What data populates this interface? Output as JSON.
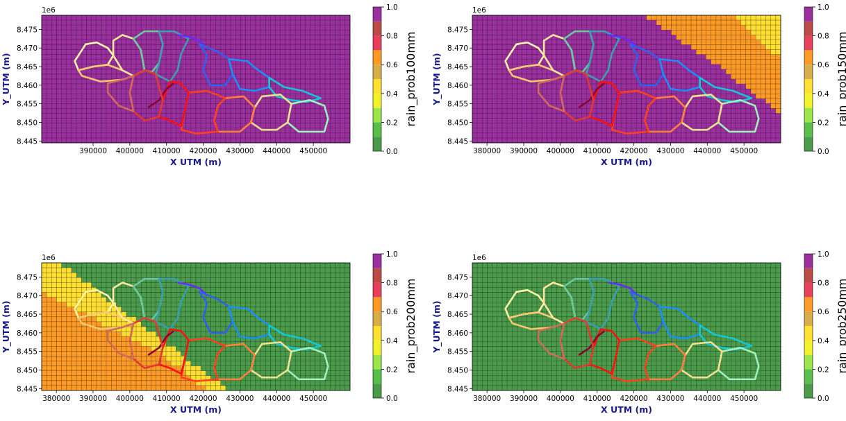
{
  "chart_data": [
    {
      "type": "heatmap",
      "title": "",
      "xlabel": "X UTM (m)",
      "ylabel": "Y_UTM (m)",
      "y_offset_label": "1e6",
      "xlim": [
        376000,
        460000
      ],
      "ylim": [
        8.4445,
        8.4788
      ],
      "xticks": [
        "390000",
        "400000",
        "410000",
        "420000",
        "430000",
        "440000",
        "450000"
      ],
      "xtick_values": [
        390000,
        400000,
        410000,
        420000,
        430000,
        440000,
        450000
      ],
      "yticks": [
        "8.445",
        "8.450",
        "8.455",
        "8.460",
        "8.465",
        "8.470",
        "8.475"
      ],
      "ytick_values": [
        8.445,
        8.45,
        8.455,
        8.46,
        8.465,
        8.47,
        8.475
      ],
      "colorbar_label": "rain_prob100mm",
      "grid_fill": {
        "default_probability": 1.0,
        "zones": []
      }
    },
    {
      "type": "heatmap",
      "title": "",
      "xlabel": "X UTM (m)",
      "ylabel": "Y_UTM (m)",
      "y_offset_label": "1e6",
      "xlim": [
        376000,
        460000
      ],
      "ylim": [
        8.4445,
        8.4788
      ],
      "xticks": [
        "380000",
        "390000",
        "400000",
        "410000",
        "420000",
        "430000",
        "440000",
        "450000"
      ],
      "xtick_values": [
        380000,
        390000,
        400000,
        410000,
        420000,
        430000,
        440000,
        450000
      ],
      "yticks": [
        "8.445",
        "8.450",
        "8.455",
        "8.460",
        "8.465",
        "8.470",
        "8.475"
      ],
      "ytick_values": [
        8.445,
        8.45,
        8.455,
        8.46,
        8.465,
        8.47,
        8.475
      ],
      "colorbar_label": "rain_prob150mm",
      "grid_fill": {
        "default_probability": 1.0,
        "zones": [
          {
            "probability": 0.65,
            "region": "upper-right diagonal band",
            "boundary": [
              [
                423000,
                8.4788
              ],
              [
                460000,
                8.4788
              ],
              [
                460000,
                8.4525
              ],
              [
                443000,
                8.465
              ]
            ]
          },
          {
            "probability": 0.45,
            "region": "upper-right corner",
            "boundary": [
              [
                447000,
                8.4788
              ],
              [
                460000,
                8.4788
              ],
              [
                460000,
                8.467
              ]
            ]
          }
        ]
      }
    },
    {
      "type": "heatmap",
      "title": "",
      "xlabel": "X UTM (m)",
      "ylabel": "Y_UTM (m)",
      "y_offset_label": "1e6",
      "xlim": [
        376000,
        460000
      ],
      "ylim": [
        8.4445,
        8.4788
      ],
      "xticks": [
        "380000",
        "390000",
        "400000",
        "410000",
        "420000",
        "430000",
        "440000",
        "450000"
      ],
      "xtick_values": [
        380000,
        390000,
        400000,
        410000,
        420000,
        430000,
        440000,
        450000
      ],
      "yticks": [
        "8.445",
        "8.450",
        "8.455",
        "8.460",
        "8.465",
        "8.470",
        "8.475"
      ],
      "ytick_values": [
        8.445,
        8.45,
        8.455,
        8.46,
        8.465,
        8.47,
        8.475
      ],
      "colorbar_label": "rain_prob200mm",
      "grid_fill": {
        "default_probability": 0.0,
        "zones": [
          {
            "probability": 0.45,
            "region": "lower-left diagonal band",
            "boundary": [
              [
                376000,
                8.4788
              ],
              [
                381000,
                8.4788
              ],
              [
                427000,
                8.4445
              ],
              [
                376000,
                8.4445
              ]
            ]
          },
          {
            "probability": 0.65,
            "region": "lower-left corner",
            "boundary": [
              [
                376000,
                8.471
              ],
              [
                408000,
                8.4545
              ],
              [
                421000,
                8.4445
              ],
              [
                376000,
                8.4445
              ]
            ]
          }
        ]
      }
    },
    {
      "type": "heatmap",
      "title": "",
      "xlabel": "X UTM (m)",
      "ylabel": "Y_UTM (m)",
      "y_offset_label": "1e6",
      "xlim": [
        376000,
        460000
      ],
      "ylim": [
        8.4445,
        8.4788
      ],
      "xticks": [
        "380000",
        "390000",
        "400000",
        "410000",
        "420000",
        "430000",
        "440000",
        "450000"
      ],
      "xtick_values": [
        380000,
        390000,
        400000,
        410000,
        420000,
        430000,
        440000,
        450000
      ],
      "yticks": [
        "8.445",
        "8.450",
        "8.455",
        "8.460",
        "8.465",
        "8.470",
        "8.475"
      ],
      "ytick_values": [
        8.445,
        8.45,
        8.455,
        8.46,
        8.465,
        8.47,
        8.475
      ],
      "colorbar_label": "rain_prob250mm",
      "grid_fill": {
        "default_probability": 0.0,
        "zones": []
      }
    }
  ],
  "colorbar": {
    "ticks": [
      "0.0",
      "0.2",
      "0.4",
      "0.6",
      "0.8",
      "1.0"
    ],
    "tick_values": [
      0.0,
      0.2,
      0.4,
      0.6,
      0.8,
      1.0
    ],
    "bins": [
      {
        "from": 0.0,
        "to": 0.1,
        "color": "#4a9c4a"
      },
      {
        "from": 0.1,
        "to": 0.2,
        "color": "#58bf48"
      },
      {
        "from": 0.2,
        "to": 0.3,
        "color": "#9be64a"
      },
      {
        "from": 0.3,
        "to": 0.4,
        "color": "#f2f22a"
      },
      {
        "from": 0.4,
        "to": 0.5,
        "color": "#ffdf30"
      },
      {
        "from": 0.5,
        "to": 0.6,
        "color": "#d8ae4a"
      },
      {
        "from": 0.6,
        "to": 0.7,
        "color": "#ff9a24"
      },
      {
        "from": 0.7,
        "to": 0.8,
        "color": "#e8405a"
      },
      {
        "from": 0.8,
        "to": 0.9,
        "color": "#bc4a45"
      },
      {
        "from": 0.9,
        "to": 1.0,
        "color": "#9c2f9f"
      }
    ]
  },
  "colors": {
    "grid_line": "#000000",
    "axis_label": "#1a1a8c",
    "boundary_palette": [
      "#fff6a8",
      "#f8c870",
      "#d06a5a",
      "#e03a30",
      "#ff2010",
      "#8c0030",
      "#6ac8a0",
      "#3aa0b0",
      "#6a2aff",
      "#3060f0",
      "#1a90ff",
      "#10c8d8",
      "#40e0c0",
      "#a0f0c0",
      "#ffa050",
      "#ff6040",
      "#f0e090"
    ]
  },
  "catchments": [
    {
      "id": 1,
      "color": "#fff6a8",
      "points": [
        [
          385000,
          8.4665
        ],
        [
          388000,
          8.471
        ],
        [
          391000,
          8.4715
        ],
        [
          394000,
          8.47
        ],
        [
          395500,
          8.468
        ],
        [
          394000,
          8.4655
        ],
        [
          390000,
          8.465
        ],
        [
          386000,
          8.464
        ]
      ]
    },
    {
      "id": 2,
      "color": "#f8c870",
      "points": [
        [
          386000,
          8.464
        ],
        [
          390000,
          8.465
        ],
        [
          394000,
          8.4655
        ],
        [
          398000,
          8.464
        ],
        [
          401000,
          8.4625
        ],
        [
          398000,
          8.4615
        ],
        [
          392000,
          8.461
        ],
        [
          387000,
          8.4625
        ]
      ]
    },
    {
      "id": 3,
      "color": "#ffe6a0",
      "points": [
        [
          395500,
          8.472
        ],
        [
          398000,
          8.4735
        ],
        [
          401000,
          8.4725
        ],
        [
          403000,
          8.4695
        ],
        [
          404000,
          8.464
        ],
        [
          401000,
          8.4625
        ],
        [
          398000,
          8.464
        ],
        [
          395500,
          8.468
        ]
      ]
    },
    {
      "id": 4,
      "color": "#6ac8a0",
      "points": [
        [
          401000,
          8.4725
        ],
        [
          404000,
          8.4745
        ],
        [
          408000,
          8.4745
        ],
        [
          409000,
          8.471
        ],
        [
          408000,
          8.466
        ],
        [
          406000,
          8.4635
        ],
        [
          404000,
          8.464
        ],
        [
          403000,
          8.4695
        ]
      ]
    },
    {
      "id": 5,
      "color": "#3aa0b0",
      "points": [
        [
          408000,
          8.4745
        ],
        [
          412000,
          8.4745
        ],
        [
          416000,
          8.4725
        ],
        [
          414000,
          8.4685
        ],
        [
          413000,
          8.464
        ],
        [
          411000,
          8.461
        ],
        [
          407000,
          8.463
        ],
        [
          408000,
          8.466
        ],
        [
          409000,
          8.471
        ]
      ]
    },
    {
      "id": 6,
      "color": "#6a2aff",
      "points": [
        [
          413000,
          8.4735
        ],
        [
          416000,
          8.473
        ],
        [
          419000,
          8.472
        ],
        [
          421000,
          8.47
        ]
      ]
    },
    {
      "id": 7,
      "color": "#3060f0",
      "points": [
        [
          419000,
          8.471
        ],
        [
          424000,
          8.469
        ],
        [
          427000,
          8.467
        ],
        [
          428000,
          8.463
        ],
        [
          426000,
          8.46
        ],
        [
          422000,
          8.46
        ],
        [
          420000,
          8.464
        ],
        [
          421000,
          8.468
        ]
      ]
    },
    {
      "id": 8,
      "color": "#1a90ff",
      "points": [
        [
          427000,
          8.467
        ],
        [
          432000,
          8.4665
        ],
        [
          435000,
          8.464
        ],
        [
          438000,
          8.462
        ],
        [
          438000,
          8.4595
        ],
        [
          434000,
          8.4585
        ],
        [
          430000,
          8.459
        ],
        [
          428000,
          8.463
        ]
      ]
    },
    {
      "id": 9,
      "color": "#10c8d8",
      "points": [
        [
          438000,
          8.462
        ],
        [
          442000,
          8.4595
        ],
        [
          447000,
          8.4585
        ],
        [
          452000,
          8.4565
        ],
        [
          448000,
          8.4555
        ],
        [
          444000,
          8.456
        ],
        [
          440000,
          8.457
        ],
        [
          438000,
          8.4595
        ]
      ]
    },
    {
      "id": 10,
      "color": "#a0f0c0",
      "points": [
        [
          444000,
          8.455
        ],
        [
          449000,
          8.456
        ],
        [
          453000,
          8.4545
        ],
        [
          454000,
          8.451
        ],
        [
          453000,
          8.4475
        ],
        [
          446000,
          8.4475
        ],
        [
          443000,
          8.45
        ]
      ]
    },
    {
      "id": 11,
      "color": "#f0e090",
      "points": [
        [
          436000,
          8.457
        ],
        [
          441000,
          8.4575
        ],
        [
          444000,
          8.455
        ],
        [
          443000,
          8.45
        ],
        [
          440000,
          8.448
        ],
        [
          436000,
          8.448
        ],
        [
          433000,
          8.45
        ],
        [
          434000,
          8.454
        ]
      ]
    },
    {
      "id": 12,
      "color": "#ff8040",
      "points": [
        [
          426000,
          8.4565
        ],
        [
          431000,
          8.457
        ],
        [
          434000,
          8.454
        ],
        [
          433000,
          8.45
        ],
        [
          430000,
          8.4475
        ],
        [
          424000,
          8.4475
        ],
        [
          423000,
          8.4505
        ],
        [
          424000,
          8.4545
        ]
      ]
    },
    {
      "id": 13,
      "color": "#ff4020",
      "points": [
        [
          416000,
          8.458
        ],
        [
          421000,
          8.4585
        ],
        [
          426000,
          8.4565
        ],
        [
          424000,
          8.4545
        ],
        [
          423000,
          8.4505
        ],
        [
          424000,
          8.4475
        ],
        [
          418000,
          8.447
        ],
        [
          414000,
          8.448
        ],
        [
          415000,
          8.453
        ]
      ]
    },
    {
      "id": 14,
      "color": "#ff1010",
      "points": [
        [
          411000,
          8.461
        ],
        [
          414000,
          8.4605
        ],
        [
          416000,
          8.458
        ],
        [
          415000,
          8.453
        ],
        [
          414000,
          8.449
        ],
        [
          411000,
          8.4505
        ],
        [
          408000,
          8.4515
        ],
        [
          409000,
          8.456
        ]
      ]
    },
    {
      "id": 15,
      "color": "#8c0030",
      "points": [
        [
          405000,
          8.454
        ],
        [
          408000,
          8.456
        ],
        [
          410000,
          8.459
        ],
        [
          412000,
          8.4605
        ]
      ]
    },
    {
      "id": 16,
      "color": "#e03a30",
      "points": [
        [
          401000,
          8.4625
        ],
        [
          404000,
          8.464
        ],
        [
          407000,
          8.463
        ],
        [
          409000,
          8.456
        ],
        [
          408000,
          8.4515
        ],
        [
          404000,
          8.4505
        ],
        [
          401000,
          8.453
        ],
        [
          400000,
          8.458
        ]
      ]
    },
    {
      "id": 17,
      "color": "#d06a5a",
      "points": [
        [
          394000,
          8.4605
        ],
        [
          398000,
          8.4615
        ],
        [
          401000,
          8.4625
        ],
        [
          400000,
          8.458
        ],
        [
          401000,
          8.453
        ],
        [
          397000,
          8.4545
        ],
        [
          394000,
          8.458
        ]
      ]
    }
  ]
}
